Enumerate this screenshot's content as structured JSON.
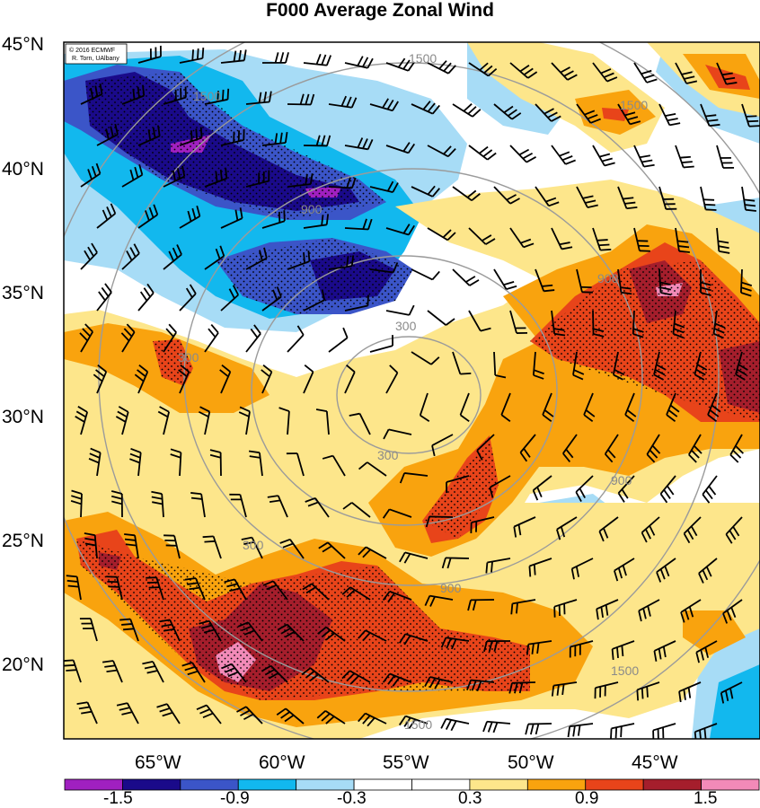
{
  "title": "F000 Average Zonal Wind",
  "credit": [
    "© 2016 ECMWF",
    "R. Torn, UAlbany"
  ],
  "lat_labels": [
    "45°N",
    "40°N",
    "35°N",
    "30°N",
    "25°N",
    "20°N"
  ],
  "lon_labels": [
    "65°W",
    "60°W",
    "55°W",
    "50°W",
    "45°W"
  ],
  "contour_labels": [
    "1500",
    "1500",
    "1500",
    "1500",
    "1500",
    "900",
    "900",
    "900",
    "900",
    "300",
    "300",
    "300",
    "300"
  ],
  "colorbar": {
    "colors": [
      "#a020c0",
      "#1a0a8a",
      "#3b55c8",
      "#12b8ee",
      "#a7dcf6",
      "#ffffff",
      "#ffffff",
      "#fde68b",
      "#f9a30e",
      "#e8441a",
      "#a51e2c",
      "#f28ab8"
    ],
    "labels": [
      "-1.5",
      "-0.9",
      "-0.3",
      "0.3",
      "0.9",
      "1.5"
    ]
  },
  "field_colors": {
    "light_blue": "#a7dcf6",
    "blue": "#12b8ee",
    "indigo": "#3b55c8",
    "navy": "#1a0a8a",
    "violet": "#a020c0",
    "yellow": "#fde68b",
    "orange": "#f9a30e",
    "red": "#e8441a",
    "dark_red": "#a51e2c",
    "pink": "#f28ab8",
    "contour": "#9b9b9b"
  }
}
